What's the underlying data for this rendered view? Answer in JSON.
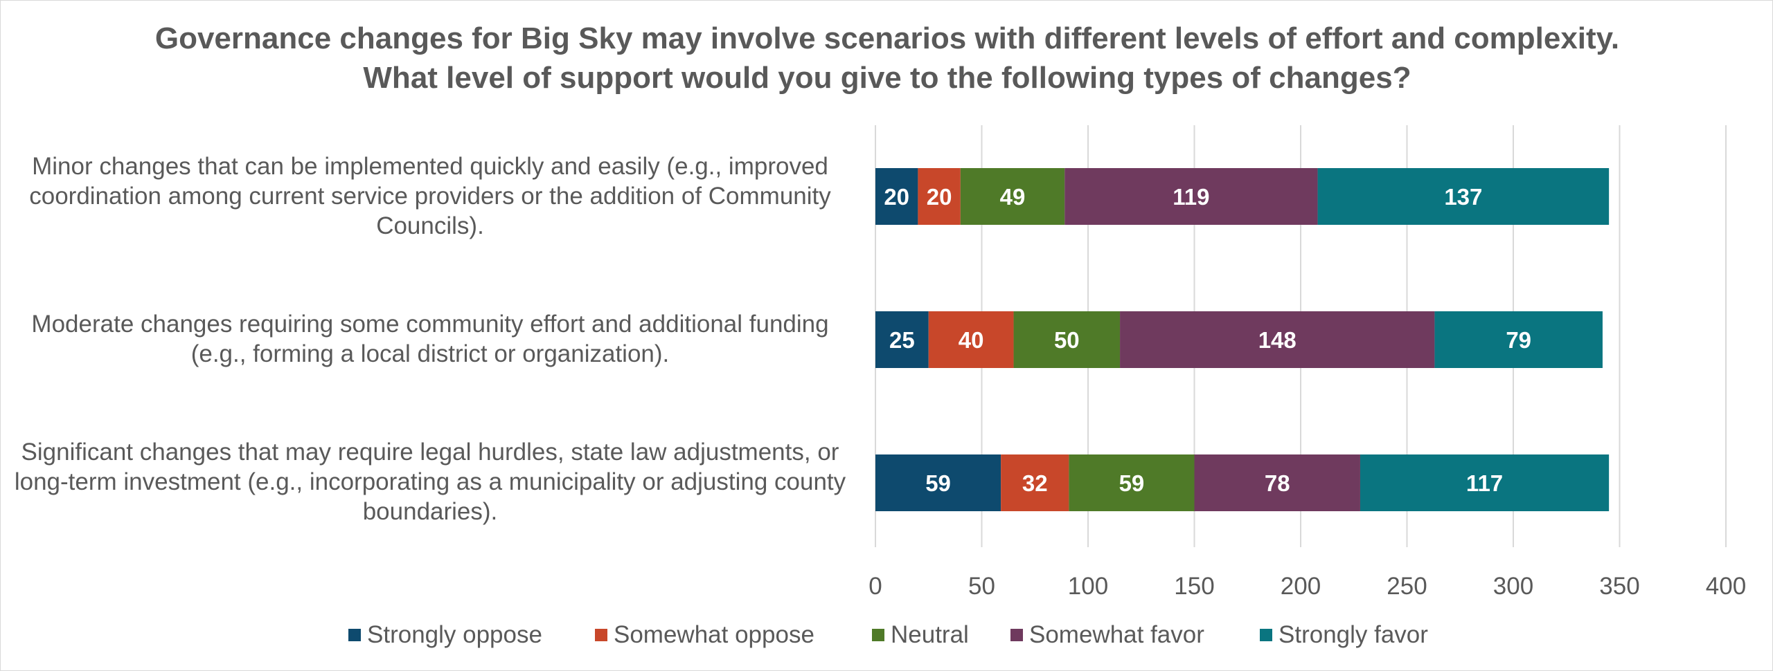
{
  "chart_data": {
    "type": "bar",
    "orientation": "horizontal",
    "stacked": true,
    "title": "Governance changes for Big Sky may involve scenarios with different levels of effort and complexity. What level of support would you give to the following types of changes?",
    "categories": [
      "Minor changes that can be implemented quickly and easily (e.g., improved coordination among current service providers or the addition of Community Councils).",
      "Moderate changes requiring some community effort and additional funding (e.g., forming a local district or organization).",
      "Significant changes that may require legal hurdles, state law adjustments, or long-term investment (e.g., incorporating as a municipality or adjusting county boundaries)."
    ],
    "series": [
      {
        "name": "Strongly oppose",
        "color": "#0e4a6e",
        "values": [
          20,
          25,
          59
        ]
      },
      {
        "name": "Somewhat oppose",
        "color": "#c8472a",
        "values": [
          20,
          40,
          32
        ]
      },
      {
        "name": "Neutral",
        "color": "#4f7a28",
        "values": [
          49,
          50,
          59
        ]
      },
      {
        "name": "Somewhat favor",
        "color": "#6f3a5e",
        "values": [
          119,
          148,
          78
        ]
      },
      {
        "name": "Strongly favor",
        "color": "#0a7580",
        "values": [
          137,
          79,
          117
        ]
      }
    ],
    "xlim": [
      0,
      400
    ],
    "xticks": [
      "0",
      "50",
      "100",
      "150",
      "200",
      "250",
      "300",
      "350",
      "400"
    ],
    "grid": true,
    "data_labels": true,
    "legend_position": "bottom"
  }
}
